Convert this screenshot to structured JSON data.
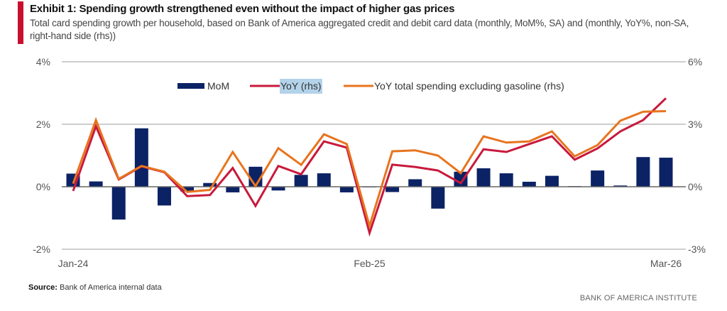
{
  "header": {
    "title": "Exhibit 1: Spending growth strengthened even without the impact of higher gas prices",
    "subtitle": "Total card spending growth per household, based on Bank of America aggregated credit and debit card data (monthly, MoM%, SA) and (monthly, YoY%, non-SA, right-hand side (rhs))"
  },
  "footer": {
    "source_label": "Source:",
    "source_text": " Bank of America internal data",
    "brand": "BANK OF AMERICA INSTITUTE"
  },
  "colors": {
    "accent": "#c8102e",
    "mom": "#0b2265",
    "yoy": "#c8193c",
    "yoy_ex_gas": "#e8741e",
    "grid": "#bdbdbd",
    "zero_line": "#666666"
  },
  "chart_data": {
    "type": "bar+line",
    "title": "Spending growth strengthened even without the impact of higher gas prices",
    "categories": [
      "Jan-24",
      "Feb-24",
      "Mar-24",
      "Apr-24",
      "May-24",
      "Jun-24",
      "Jul-24",
      "Aug-24",
      "Sep-24",
      "Oct-24",
      "Nov-24",
      "Dec-24",
      "Jan-25",
      "Feb-25",
      "Mar-25",
      "Apr-25",
      "May-25",
      "Jun-25",
      "Jul-25",
      "Aug-25",
      "Sep-25",
      "Oct-25",
      "Nov-25",
      "Dec-25",
      "Jan-26",
      "Feb-26",
      "Mar-26"
    ],
    "x_tick_labels": [
      {
        "index": 0,
        "label": "Jan-24"
      },
      {
        "index": 13,
        "label": "Feb-25"
      },
      {
        "index": 26,
        "label": "Mar-26"
      }
    ],
    "left_axis": {
      "ylim": [
        -2,
        4
      ],
      "ticks": [
        -2,
        0,
        2,
        4
      ],
      "tick_labels": [
        "-2%",
        "0%",
        "2%",
        "4%"
      ]
    },
    "right_axis": {
      "ylim": [
        -3,
        6
      ],
      "ticks": [
        -3,
        0,
        3,
        6
      ],
      "tick_labels": [
        "-3%",
        "0%",
        "3%",
        "6%"
      ]
    },
    "grid": true,
    "legend_position": "top-center",
    "series": [
      {
        "name": "MoM",
        "kind": "bar",
        "axis": "left",
        "values": [
          0.42,
          0.17,
          -1.05,
          1.87,
          -0.6,
          -0.15,
          0.12,
          -0.18,
          0.64,
          -0.12,
          0.38,
          0.43,
          -0.18,
          0.0,
          -0.17,
          0.24,
          -0.7,
          0.48,
          0.59,
          0.43,
          0.16,
          0.35,
          0.02,
          0.52,
          0.04,
          0.95,
          0.93
        ]
      },
      {
        "name": "YoY (rhs)",
        "kind": "line",
        "axis": "right",
        "highlighted": true,
        "values": [
          -0.2,
          2.9,
          0.35,
          0.98,
          0.7,
          -0.45,
          -0.4,
          0.9,
          -0.92,
          1.0,
          0.6,
          2.18,
          1.88,
          -2.22,
          1.06,
          0.95,
          0.78,
          0.17,
          1.8,
          1.67,
          2.05,
          2.42,
          1.3,
          1.84,
          2.66,
          3.2,
          4.25
        ]
      },
      {
        "name": "YoY total spending excluding gasoline (rhs)",
        "kind": "line",
        "axis": "right",
        "values": [
          0.15,
          3.2,
          0.38,
          1.0,
          0.72,
          -0.25,
          -0.15,
          1.67,
          0.03,
          1.85,
          1.05,
          2.52,
          2.05,
          -1.88,
          1.7,
          1.75,
          1.5,
          0.65,
          2.42,
          2.12,
          2.18,
          2.66,
          1.46,
          2.0,
          3.17,
          3.6,
          3.63
        ]
      }
    ]
  }
}
